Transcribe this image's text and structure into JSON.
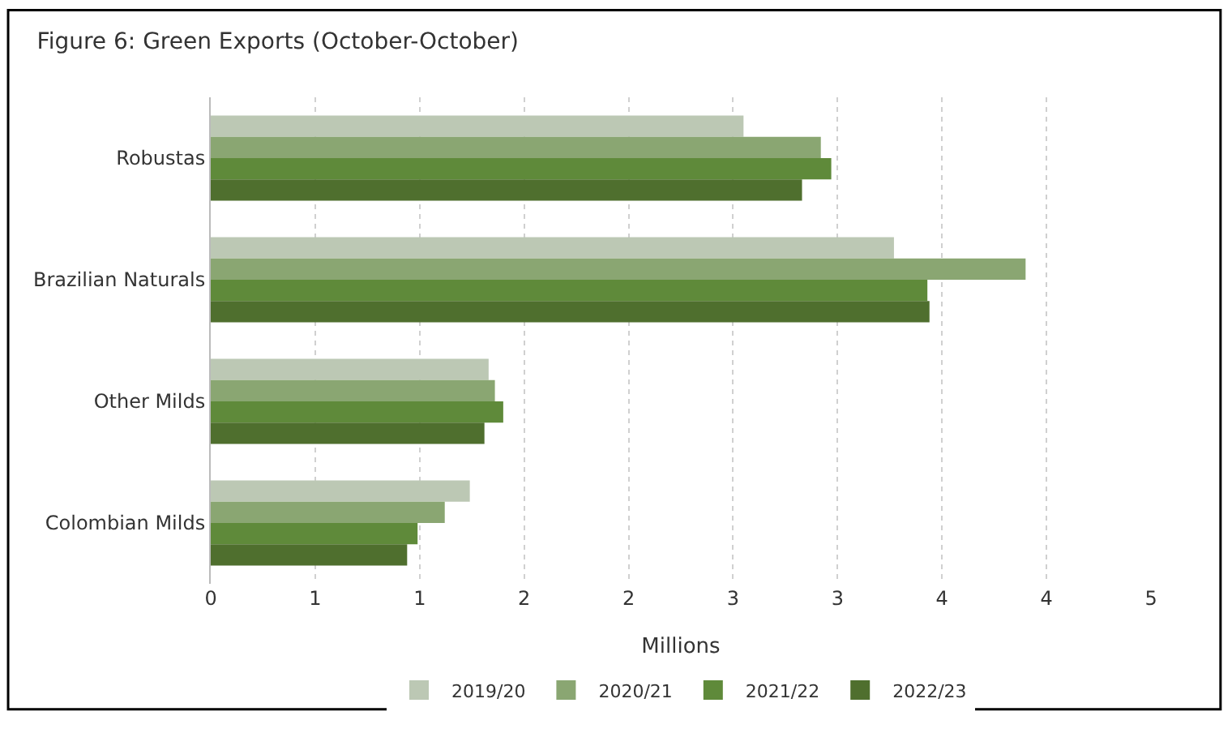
{
  "chart_data": {
    "type": "bar",
    "orientation": "horizontal",
    "title": "Figure 6: Green Exports (October-October)",
    "xlabel": "Millions",
    "categories": [
      "Robustas",
      "Brazilian Naturals",
      "Other Milds",
      "Colombian Milds"
    ],
    "series": [
      {
        "name": "2019/20",
        "color": "#bcc8b4",
        "values": [
          2.55,
          3.27,
          1.33,
          1.24
        ]
      },
      {
        "name": "2020/21",
        "color": "#8aa672",
        "values": [
          2.92,
          3.9,
          1.36,
          1.12
        ]
      },
      {
        "name": "2021/22",
        "color": "#5f8a3a",
        "values": [
          2.97,
          3.43,
          1.4,
          0.99
        ]
      },
      {
        "name": "2022/23",
        "color": "#4f6f2e",
        "values": [
          2.83,
          3.44,
          1.31,
          0.94
        ]
      }
    ],
    "xlim": [
      0,
      4.5
    ],
    "xticks": [
      0,
      {
        "value": 0.5,
        "label": "1"
      },
      1,
      {
        "value": 1.5,
        "label": "2"
      },
      2,
      {
        "value": 2.5,
        "label": "3"
      },
      3,
      {
        "value": 3.5,
        "label": "4"
      },
      4,
      {
        "value": 4.5,
        "label": "5"
      }
    ],
    "grid": "x",
    "legend": "bottom"
  }
}
